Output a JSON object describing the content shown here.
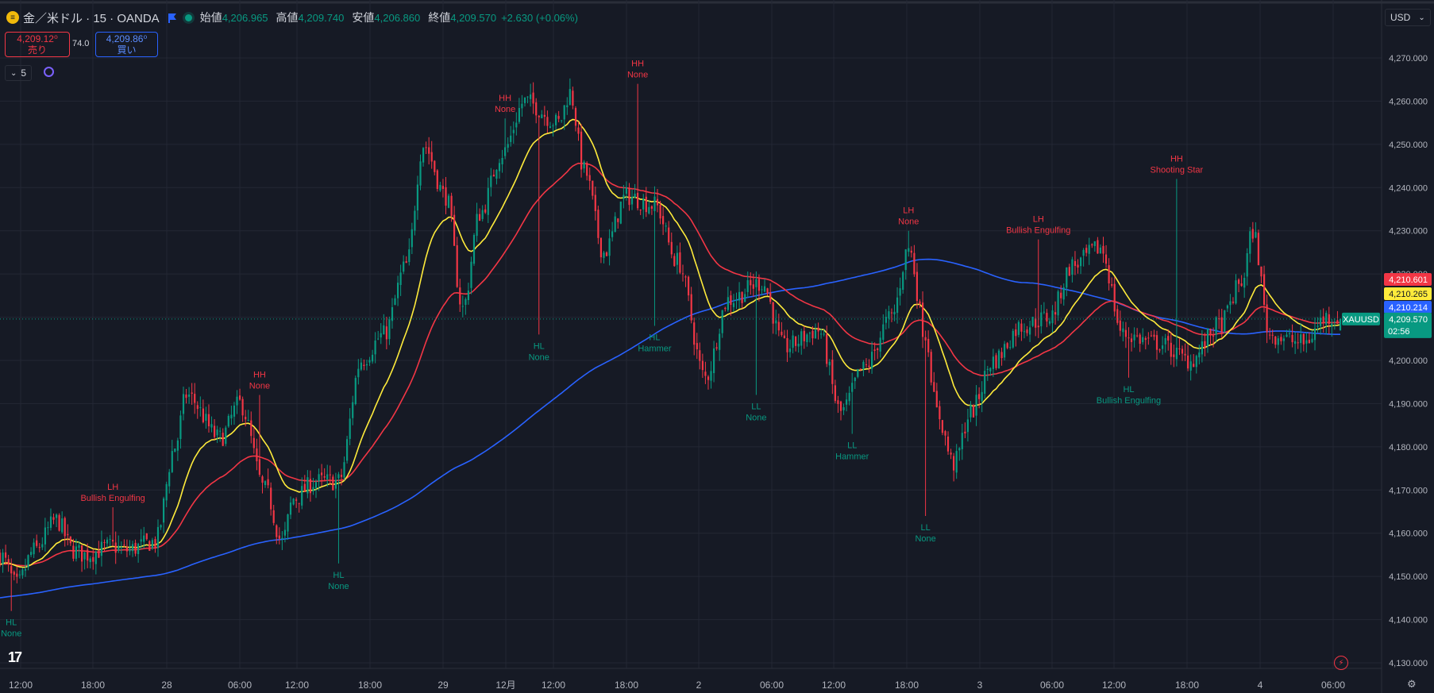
{
  "header": {
    "symbol": "金／米ドル · 15 · OANDA",
    "open_label": "始値",
    "open": "4,206.965",
    "high_label": "高値",
    "high": "4,209.740",
    "low_label": "安値",
    "low": "4,206.860",
    "close_label": "終値",
    "close": "4,209.570",
    "change": "+2.630 (+0.06%)"
  },
  "trade": {
    "sell_price": "4,209.12⁰",
    "sell_label": "売り",
    "spread": "74.0",
    "buy_price": "4,209.86⁰",
    "buy_label": "買い"
  },
  "indicators_count": "5",
  "currency": "USD",
  "colors": {
    "up": "#089981",
    "down": "#f23645",
    "ma_fast": "#ffeb3b",
    "ma_mid": "#f23645",
    "ma_slow": "#2962ff",
    "grid": "#232734",
    "bg": "#161a25"
  },
  "chart_data": {
    "type": "candlestick",
    "y_axis_ticks": [
      4270,
      4260,
      4250,
      4240,
      4230,
      4220,
      4210,
      4200,
      4190,
      4180,
      4170,
      4160,
      4150,
      4140,
      4130
    ],
    "y_axis_tick_labels": [
      "4,270.000",
      "4,260.000",
      "4,250.000",
      "4,240.000",
      "4,230.000",
      "4,220.000",
      "4,210.000",
      "4,200.000",
      "4,190.000",
      "4,180.000",
      "4,170.000",
      "4,160.000",
      "4,150.000",
      "4,140.000",
      "4,130.000"
    ],
    "ylim": [
      4126,
      4279
    ],
    "x_axis_labels": [
      "12:00",
      "18:00",
      "28",
      "06:00",
      "12:00",
      "18:00",
      "29",
      "12月",
      "12:00",
      "18:00",
      "2",
      "06:00",
      "12:00",
      "18:00",
      "3",
      "06:00",
      "12:00",
      "18:00",
      "4",
      "06:00"
    ],
    "last_price": {
      "symbol": "XAUUSD",
      "value": "4,209.570",
      "countdown": "02:56"
    },
    "ma_values": [
      {
        "value": "4,210.601",
        "color": "#f23645"
      },
      {
        "value": "4,210.265",
        "color": "#ffeb3b"
      },
      {
        "value": "4,210.214",
        "color": "#2962ff"
      }
    ],
    "anchors": [
      [
        0,
        4155
      ],
      [
        6,
        4148
      ],
      [
        12,
        4156
      ],
      [
        20,
        4163
      ],
      [
        26,
        4156
      ],
      [
        30,
        4155
      ],
      [
        40,
        4157
      ],
      [
        44,
        4156
      ],
      [
        55,
        4158
      ],
      [
        62,
        4180
      ],
      [
        66,
        4192
      ],
      [
        78,
        4182
      ],
      [
        85,
        4190
      ],
      [
        94,
        4170
      ],
      [
        100,
        4158
      ],
      [
        104,
        4168
      ],
      [
        112,
        4172
      ],
      [
        120,
        4172
      ],
      [
        128,
        4200
      ],
      [
        136,
        4206
      ],
      [
        144,
        4222
      ],
      [
        150,
        4250
      ],
      [
        158,
        4238
      ],
      [
        164,
        4212
      ],
      [
        170,
        4234
      ],
      [
        178,
        4248
      ],
      [
        186,
        4260
      ],
      [
        198,
        4255
      ],
      [
        202,
        4262
      ],
      [
        207,
        4244
      ],
      [
        214,
        4225
      ],
      [
        222,
        4238
      ],
      [
        232,
        4236
      ],
      [
        240,
        4223
      ],
      [
        250,
        4196
      ],
      [
        258,
        4214
      ],
      [
        270,
        4218
      ],
      [
        278,
        4203
      ],
      [
        290,
        4207
      ],
      [
        298,
        4188
      ],
      [
        306,
        4198
      ],
      [
        316,
        4210
      ],
      [
        322,
        4226
      ],
      [
        328,
        4206
      ],
      [
        332,
        4188
      ],
      [
        338,
        4176
      ],
      [
        344,
        4188
      ],
      [
        352,
        4200
      ],
      [
        362,
        4208
      ],
      [
        372,
        4210
      ],
      [
        380,
        4222
      ],
      [
        390,
        4226
      ],
      [
        398,
        4206
      ],
      [
        410,
        4204
      ],
      [
        422,
        4200
      ],
      [
        432,
        4208
      ],
      [
        440,
        4218
      ],
      [
        444,
        4230
      ],
      [
        450,
        4206
      ],
      [
        462,
        4204
      ],
      [
        470,
        4210
      ],
      [
        475,
        4210
      ]
    ],
    "swing_labels": [
      {
        "bar": 4,
        "price": 4142,
        "pos": "below",
        "kind": "HL",
        "pattern": "None"
      },
      {
        "bar": 40,
        "price": 4166,
        "pos": "above",
        "kind": "LH",
        "pattern": "Bullish Engulfing"
      },
      {
        "bar": 92,
        "price": 4192,
        "pos": "above",
        "kind": "HH",
        "pattern": "None"
      },
      {
        "bar": 120,
        "price": 4153,
        "pos": "below",
        "kind": "HL",
        "pattern": "None"
      },
      {
        "bar": 179,
        "price": 4256,
        "pos": "above",
        "kind": "HH",
        "pattern": "None"
      },
      {
        "bar": 191,
        "price": 4206,
        "pos": "below",
        "kind": "HL",
        "pattern": "None"
      },
      {
        "bar": 226,
        "price": 4264,
        "pos": "above",
        "kind": "HH",
        "pattern": "None"
      },
      {
        "bar": 232,
        "price": 4208,
        "pos": "below",
        "kind": "HL",
        "pattern": "Hammer"
      },
      {
        "bar": 268,
        "price": 4192,
        "pos": "below",
        "kind": "LL",
        "pattern": "None"
      },
      {
        "bar": 302,
        "price": 4183,
        "pos": "below",
        "kind": "LL",
        "pattern": "Hammer"
      },
      {
        "bar": 322,
        "price": 4230,
        "pos": "above",
        "kind": "LH",
        "pattern": "None"
      },
      {
        "bar": 328,
        "price": 4164,
        "pos": "below",
        "kind": "LL",
        "pattern": "None"
      },
      {
        "bar": 368,
        "price": 4228,
        "pos": "above",
        "kind": "LH",
        "pattern": "Bullish Engulfing"
      },
      {
        "bar": 400,
        "price": 4196,
        "pos": "below",
        "kind": "HL",
        "pattern": "Bullish Engulfing"
      },
      {
        "bar": 417,
        "price": 4242,
        "pos": "above",
        "kind": "HH",
        "pattern": "Shooting Star"
      }
    ]
  }
}
